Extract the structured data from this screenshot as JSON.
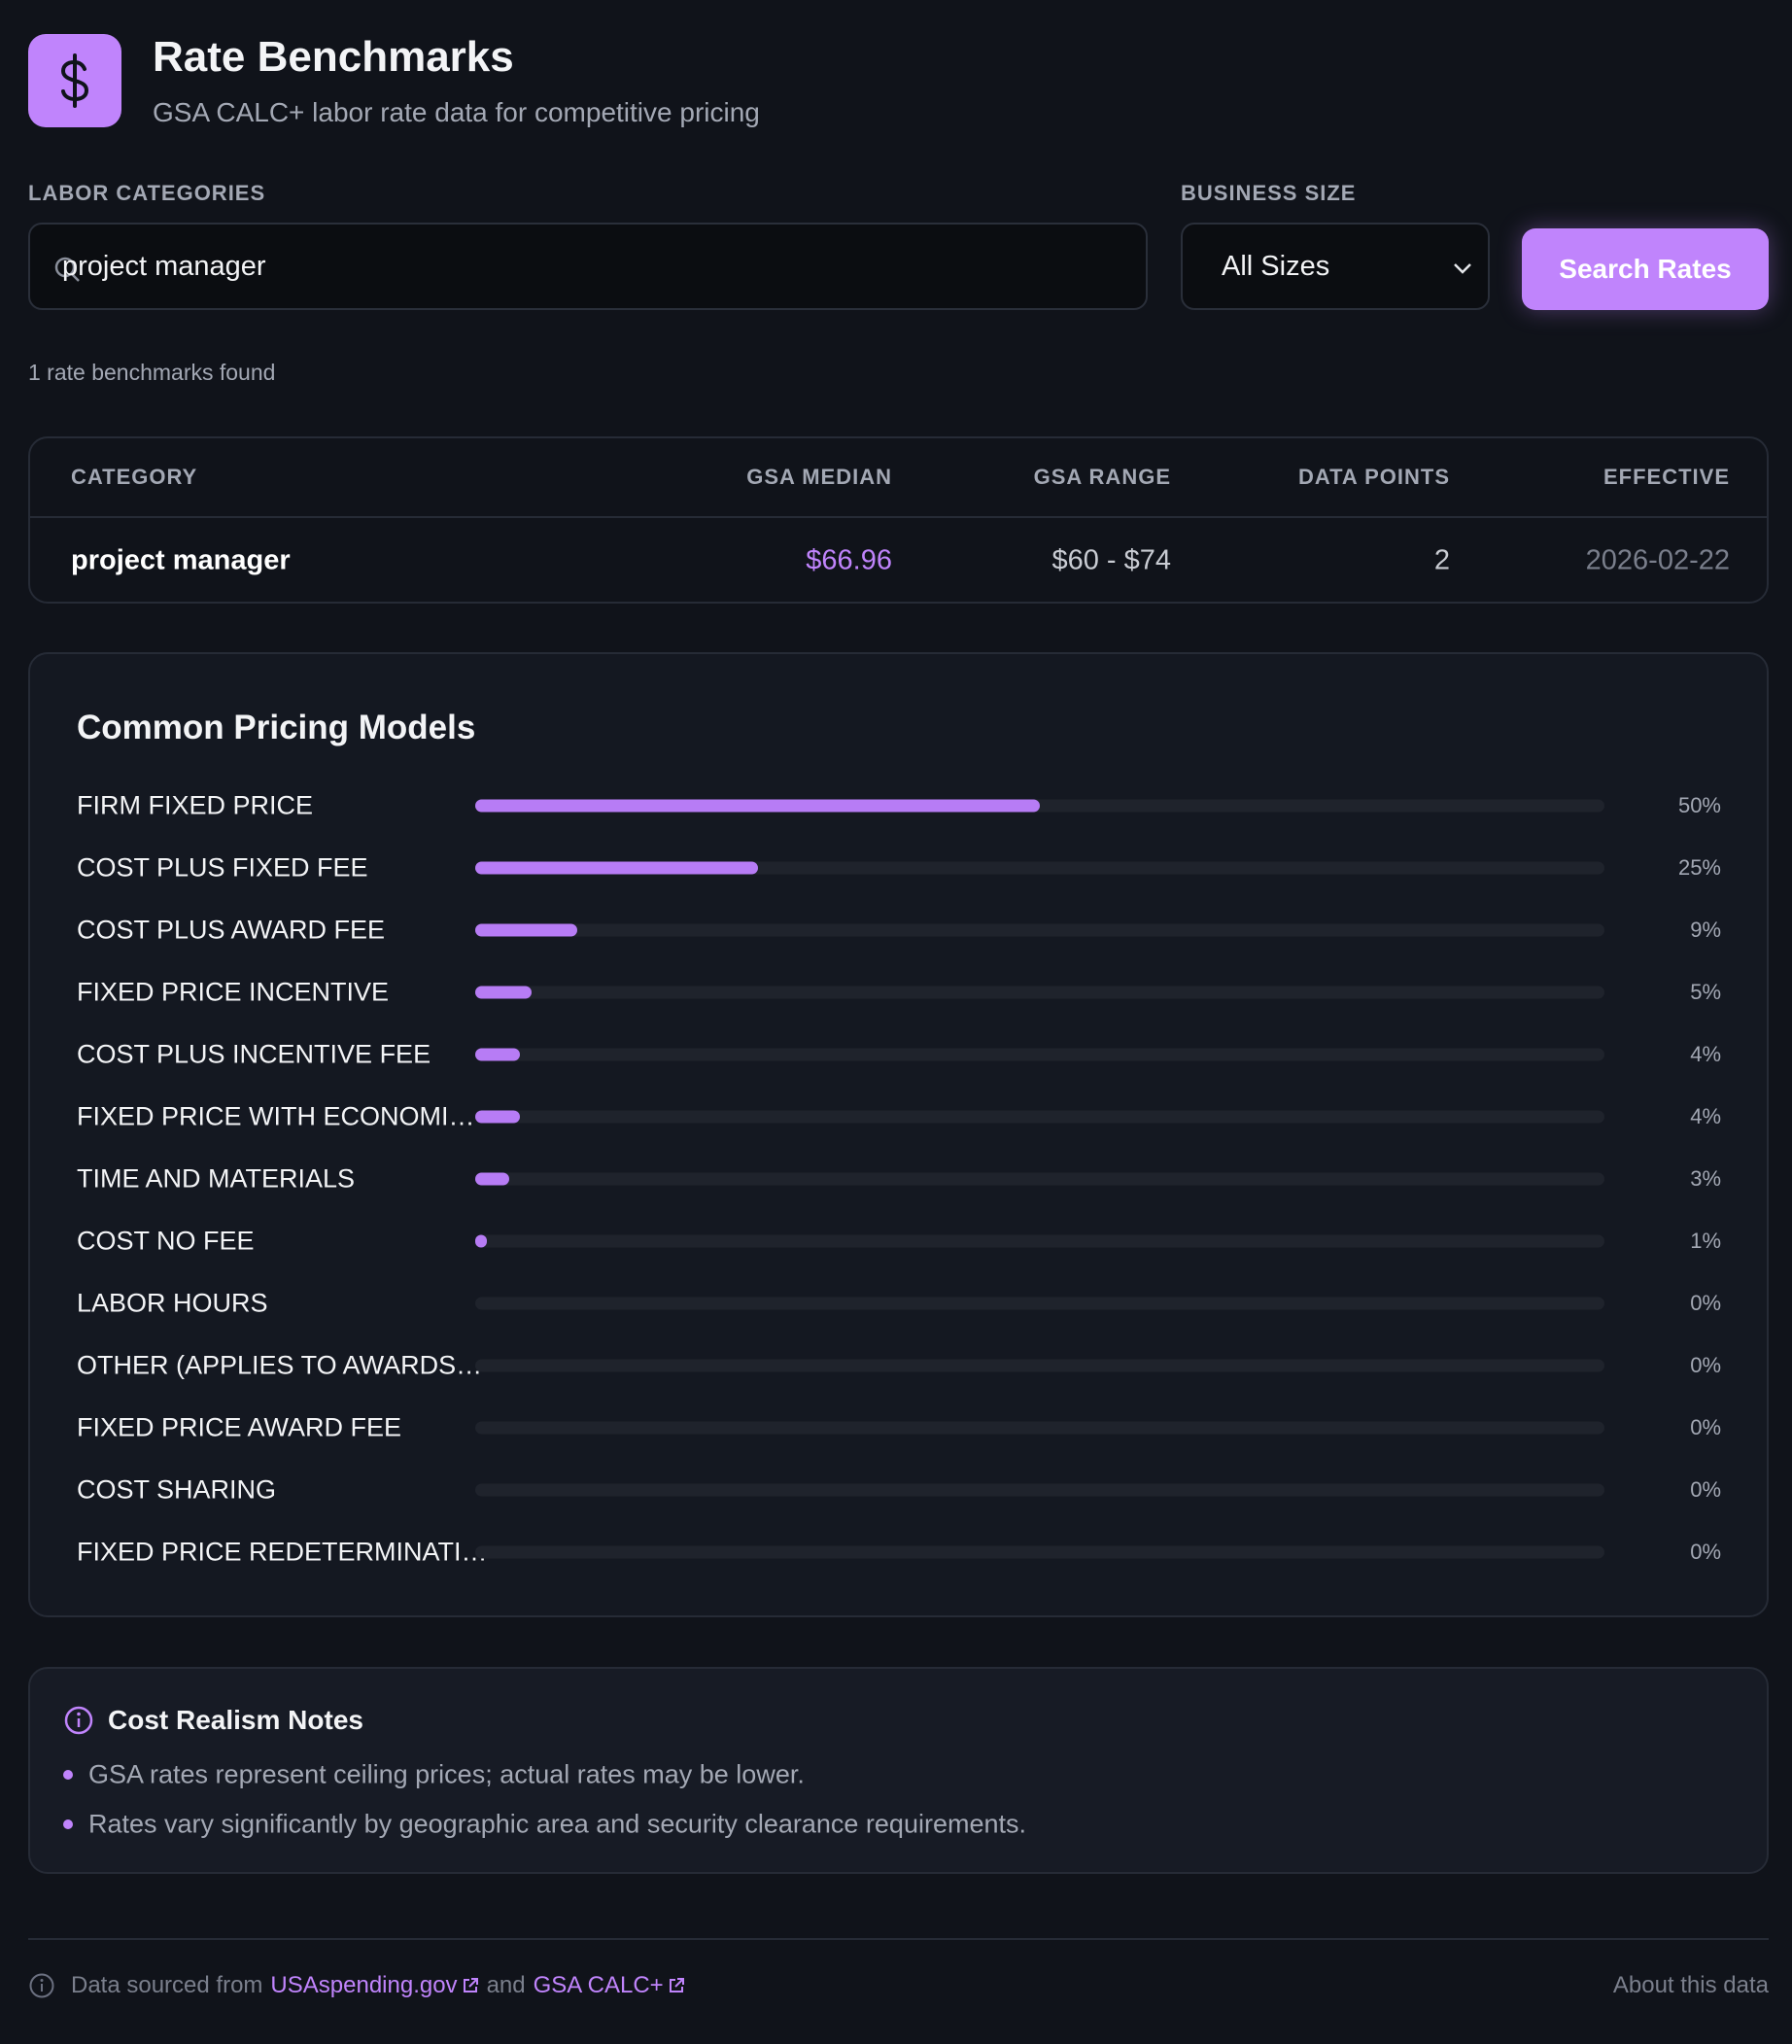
{
  "header": {
    "title": "Rate Benchmarks",
    "subtitle": "GSA CALC+ labor rate data for competitive pricing"
  },
  "search": {
    "category_label": "LABOR CATEGORIES",
    "query": "project manager",
    "size_label": "BUSINESS SIZE",
    "size": "All Sizes",
    "button": "Search Rates"
  },
  "result_count": "1 rate benchmarks found",
  "table": {
    "columns": [
      "CATEGORY",
      "GSA MEDIAN",
      "GSA RANGE",
      "DATA POINTS",
      "EFFECTIVE"
    ],
    "rows": [
      [
        "project manager",
        "$66.96",
        "$60 - $74",
        "2",
        "2026-02-22"
      ]
    ]
  },
  "chart_data": {
    "type": "bar",
    "orientation": "horizontal",
    "title": "Common Pricing Models",
    "categories": [
      "FIRM FIXED PRICE",
      "COST PLUS FIXED FEE",
      "COST PLUS AWARD FEE",
      "FIXED PRICE INCENTIVE",
      "COST PLUS INCENTIVE FEE",
      "FIXED PRICE WITH ECONOMI…",
      "TIME AND MATERIALS",
      "COST NO FEE",
      "LABOR HOURS",
      "OTHER (APPLIES TO AWARDS…",
      "FIXED PRICE AWARD FEE",
      "COST SHARING",
      "FIXED PRICE REDETERMINATI…"
    ],
    "values": [
      50,
      25,
      9,
      5,
      4,
      4,
      3,
      1,
      0,
      0,
      0,
      0,
      0
    ],
    "value_labels": [
      "50%",
      "25%",
      "9%",
      "5%",
      "4%",
      "4%",
      "3%",
      "1%",
      "0%",
      "0%",
      "0%",
      "0%",
      "0%"
    ],
    "xlim": [
      0,
      100
    ],
    "color": "#b77cf5"
  },
  "notes": {
    "title": "Cost Realism Notes",
    "items": [
      "GSA rates represent ceiling prices; actual rates may be lower.",
      "Rates vary significantly by geographic area and security clearance requirements."
    ]
  },
  "footer": {
    "prefix": "Data sourced from",
    "link1": "USAspending.gov",
    "conjunction": "and",
    "link2": "GSA CALC+",
    "about": "About this data"
  }
}
